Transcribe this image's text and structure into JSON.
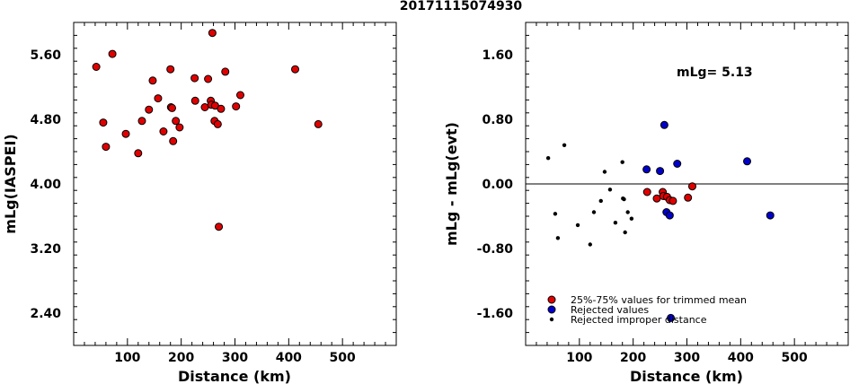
{
  "title": "20171115074930",
  "chart_data": [
    {
      "type": "scatter",
      "xlabel": "Distance (km)",
      "ylabel": "mLg(IASPEI)",
      "xlim": [
        0,
        600
      ],
      "ylim": [
        2.0,
        6.0
      ],
      "xticks": [
        100,
        200,
        300,
        400,
        500
      ],
      "xtick_labels": [
        "100",
        "200",
        "300",
        "400",
        "500"
      ],
      "yticks": [
        2.4,
        3.2,
        4.0,
        4.8,
        5.6
      ],
      "ytick_labels": [
        "2.40",
        "3.20",
        "4.00",
        "4.80",
        "5.60"
      ],
      "series": [
        {
          "color": "#e00000",
          "points": [
            [
              42,
              5.45
            ],
            [
              55,
              4.76
            ],
            [
              60,
              4.46
            ],
            [
              72,
              5.61
            ],
            [
              97,
              4.62
            ],
            [
              120,
              4.38
            ],
            [
              127,
              4.78
            ],
            [
              140,
              4.92
            ],
            [
              147,
              5.28
            ],
            [
              157,
              5.06
            ],
            [
              167,
              4.65
            ],
            [
              180,
              5.42
            ],
            [
              181,
              4.95
            ],
            [
              183,
              4.94
            ],
            [
              185,
              4.53
            ],
            [
              190,
              4.78
            ],
            [
              197,
              4.7
            ],
            [
              225,
              5.31
            ],
            [
              226,
              5.03
            ],
            [
              244,
              4.95
            ],
            [
              250,
              5.3
            ],
            [
              255,
              5.03
            ],
            [
              256,
              4.98
            ],
            [
              258,
              5.87
            ],
            [
              263,
              4.97
            ],
            [
              262,
              4.78
            ],
            [
              268,
              4.74
            ],
            [
              270,
              3.47
            ],
            [
              274,
              4.93
            ],
            [
              282,
              5.39
            ],
            [
              302,
              4.96
            ],
            [
              310,
              5.1
            ],
            [
              412,
              5.42
            ],
            [
              455,
              4.74
            ]
          ]
        }
      ]
    },
    {
      "type": "scatter",
      "xlabel": "Distance (km)",
      "ylabel": "mLg - mLg(evt)",
      "xlim": [
        0,
        600
      ],
      "ylim": [
        -2.0,
        2.0
      ],
      "xticks": [
        100,
        200,
        300,
        400,
        500
      ],
      "xtick_labels": [
        "100",
        "200",
        "300",
        "400",
        "500"
      ],
      "yticks": [
        -1.6,
        -0.8,
        0.0,
        0.8,
        1.6
      ],
      "ytick_labels": [
        "-1.60",
        "-0.80",
        "0.00",
        "0.80",
        "1.60"
      ],
      "reference_line": 0.0,
      "annotation": "mLg= 5.13",
      "legend": [
        {
          "label": "25%-75% values for trimmed mean",
          "color": "#e00000",
          "marker": "circle"
        },
        {
          "label": "Rejected values",
          "color": "#0000cc",
          "marker": "circle"
        },
        {
          "label": "Rejected improper distance",
          "color": "#000000",
          "marker": "dot"
        }
      ],
      "series": [
        {
          "name": "25%-75% values for trimmed mean",
          "color": "#e00000",
          "points": [
            [
              226,
              -0.1
            ],
            [
              244,
              -0.18
            ],
            [
              255,
              -0.1
            ],
            [
              256,
              -0.15
            ],
            [
              263,
              -0.16
            ],
            [
              268,
              -0.2
            ],
            [
              274,
              -0.21
            ],
            [
              302,
              -0.17
            ],
            [
              310,
              -0.03
            ]
          ]
        },
        {
          "name": "Rejected values",
          "color": "#0000cc",
          "points": [
            [
              225,
              0.18
            ],
            [
              250,
              0.16
            ],
            [
              258,
              0.73
            ],
            [
              262,
              -0.35
            ],
            [
              268,
              -0.39
            ],
            [
              270,
              -1.66
            ],
            [
              282,
              0.25
            ],
            [
              412,
              0.28
            ],
            [
              455,
              -0.39
            ]
          ]
        },
        {
          "name": "Rejected improper distance",
          "color": "#000000",
          "points": [
            [
              42,
              0.32
            ],
            [
              55,
              -0.37
            ],
            [
              60,
              -0.67
            ],
            [
              72,
              0.48
            ],
            [
              97,
              -0.51
            ],
            [
              120,
              -0.75
            ],
            [
              127,
              -0.35
            ],
            [
              140,
              -0.21
            ],
            [
              147,
              0.15
            ],
            [
              157,
              -0.07
            ],
            [
              167,
              -0.48
            ],
            [
              180,
              0.27
            ],
            [
              181,
              -0.18
            ],
            [
              183,
              -0.19
            ],
            [
              185,
              -0.6
            ],
            [
              190,
              -0.35
            ],
            [
              197,
              -0.43
            ]
          ]
        }
      ]
    }
  ]
}
